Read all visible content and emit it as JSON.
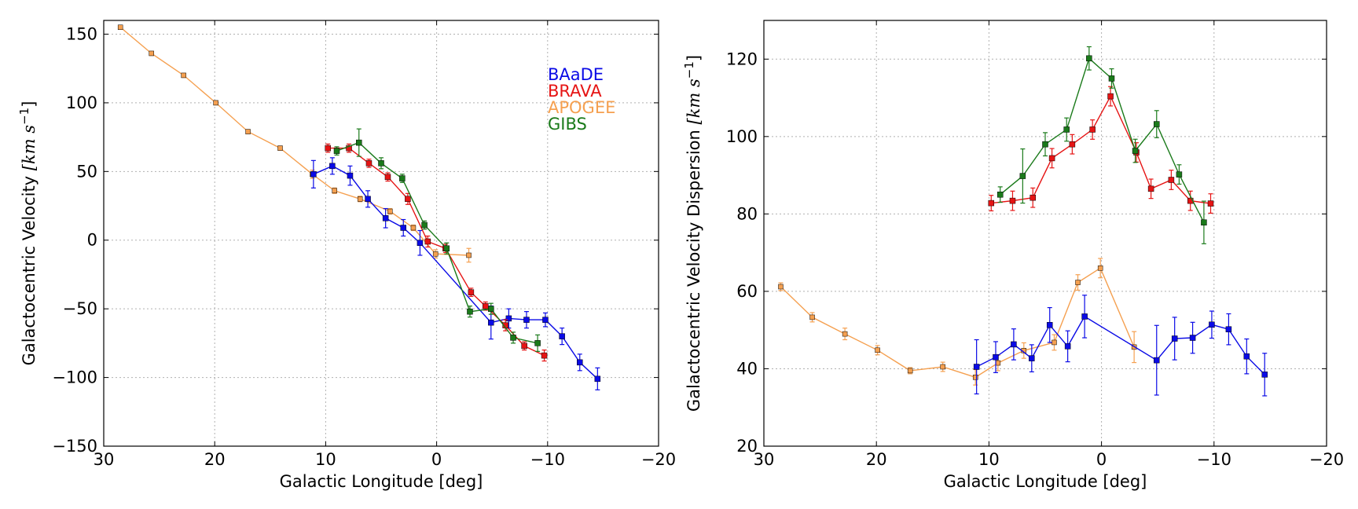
{
  "chart_data": [
    {
      "type": "line",
      "panel": "left",
      "title": "",
      "xlabel": "Galactic Longitude [deg]",
      "ylabel_text": "Galactocentric Velocity",
      "ylabel_units": "[km s",
      "ylabel_exponent": "−1",
      "ylabel_close": "]",
      "xlim": [
        30,
        -20
      ],
      "ylim": [
        -150,
        160
      ],
      "xticks": [
        30,
        20,
        10,
        0,
        -10,
        -20
      ],
      "xtick_labels": [
        "30",
        "20",
        "10",
        "0",
        "−10",
        "−20"
      ],
      "yticks": [
        -150,
        -100,
        -50,
        0,
        50,
        100,
        150
      ],
      "ytick_labels": [
        "−150",
        "−100",
        "−50",
        "0",
        "50",
        "100",
        "150"
      ],
      "grid": true,
      "legend": {
        "position": "upper-right",
        "entries": [
          {
            "label": "BAaDE",
            "color": "#0a0ae6"
          },
          {
            "label": "BRAVA",
            "color": "#e61414"
          },
          {
            "label": "APOGEE",
            "color": "#f5a050"
          },
          {
            "label": "GIBS",
            "color": "#1a7a1a"
          }
        ]
      },
      "series": [
        {
          "name": "APOGEE",
          "color": "#f5a050",
          "marker_size": 6,
          "x": [
            28.5,
            25.7,
            22.8,
            19.9,
            17.0,
            14.1,
            11.2,
            9.2,
            6.9,
            4.2,
            2.1,
            0.1,
            -2.9
          ],
          "y": [
            155,
            136,
            120,
            100,
            79,
            67,
            48,
            36,
            30,
            21,
            9,
            -10,
            -11
          ],
          "err": [
            1,
            1.5,
            1.5,
            1.5,
            1.5,
            1.5,
            3,
            2,
            2,
            2,
            2,
            3,
            5
          ]
        },
        {
          "name": "BAaDE",
          "color": "#0a0ae6",
          "marker_size": 7,
          "x": [
            11.1,
            9.4,
            7.8,
            6.2,
            4.6,
            3.0,
            1.5,
            -4.9,
            -6.5,
            -8.1,
            -9.8,
            -11.3,
            -12.9,
            -14.5
          ],
          "y": [
            48,
            54,
            47,
            30,
            16,
            9,
            -2,
            -60,
            -57,
            -58,
            -58,
            -70,
            -89,
            -101
          ],
          "err": [
            10,
            6,
            7,
            6,
            7,
            6,
            9,
            12,
            7,
            6,
            5,
            6,
            6,
            8
          ]
        },
        {
          "name": "BRAVA",
          "color": "#e61414",
          "marker_size": 7,
          "x": [
            9.8,
            7.9,
            6.1,
            4.4,
            2.6,
            0.8,
            -0.8,
            -3.1,
            -4.4,
            -6.2,
            -7.9,
            -9.7
          ],
          "y": [
            67,
            67,
            56,
            46,
            30,
            -1,
            -6,
            -38,
            -48,
            -62,
            -77,
            -84
          ],
          "err": [
            3,
            3,
            3,
            3,
            4,
            4,
            3,
            3,
            3,
            4,
            3,
            4
          ]
        },
        {
          "name": "GIBS",
          "color": "#1a7a1a",
          "marker_size": 7,
          "x": [
            9.0,
            7.0,
            5.0,
            3.1,
            1.1,
            -0.9,
            -3.0,
            -4.9,
            -6.9,
            -9.1
          ],
          "y": [
            65,
            71,
            56,
            45,
            11,
            -6,
            -52,
            -50,
            -71,
            -75
          ],
          "err": [
            3,
            10,
            4,
            3,
            3,
            4,
            4,
            4,
            4,
            6
          ]
        }
      ]
    },
    {
      "type": "line",
      "panel": "right",
      "title": "",
      "xlabel": "Galactic Longitude [deg]",
      "ylabel_text": "Galactocentric Velocity Dispersion",
      "ylabel_units": "[km s",
      "ylabel_exponent": "−1",
      "ylabel_close": "]",
      "xlim": [
        30,
        -20
      ],
      "ylim": [
        20,
        130
      ],
      "xticks": [
        30,
        20,
        10,
        0,
        -10,
        -20
      ],
      "xtick_labels": [
        "30",
        "20",
        "10",
        "0",
        "−10",
        "−20"
      ],
      "yticks": [
        20,
        40,
        60,
        80,
        100,
        120
      ],
      "ytick_labels": [
        "20",
        "40",
        "60",
        "80",
        "100",
        "120"
      ],
      "grid": true,
      "series": [
        {
          "name": "APOGEE",
          "color": "#f5a050",
          "marker_size": 6,
          "x": [
            28.5,
            25.7,
            22.8,
            19.9,
            17.0,
            14.1,
            11.2,
            9.2,
            6.9,
            4.2,
            2.1,
            0.1,
            -2.9
          ],
          "y": [
            61.2,
            53.3,
            49,
            44.8,
            39.5,
            40.5,
            37.8,
            41.5,
            44.7,
            46.8,
            62.3,
            66,
            45.6
          ],
          "err": [
            1,
            1.2,
            1.5,
            1.2,
            0.8,
            1.2,
            2,
            2,
            2,
            2,
            2,
            2.5,
            4
          ]
        },
        {
          "name": "BAaDE",
          "color": "#0a0ae6",
          "marker_size": 7,
          "x": [
            11.1,
            9.4,
            7.8,
            6.2,
            4.6,
            3.0,
            1.5,
            -4.9,
            -6.5,
            -8.1,
            -9.8,
            -11.3,
            -12.9,
            -14.5
          ],
          "y": [
            40.5,
            43,
            46.3,
            42.7,
            51.3,
            45.8,
            53.5,
            42.2,
            47.8,
            48,
            51.4,
            50.2,
            43.2,
            38.5
          ],
          "err": [
            7,
            4,
            4,
            3.5,
            4.5,
            4,
            5.5,
            9,
            5.5,
            4,
            3.5,
            4,
            4.5,
            5.5
          ]
        },
        {
          "name": "BRAVA",
          "color": "#e61414",
          "marker_size": 7,
          "x": [
            9.8,
            7.9,
            6.1,
            4.4,
            2.6,
            0.8,
            -0.8,
            -3.1,
            -4.4,
            -6.2,
            -7.9,
            -9.7
          ],
          "y": [
            82.8,
            83.4,
            84.2,
            94.4,
            98,
            101.8,
            110.4,
            95.9,
            86.5,
            88.8,
            83.4,
            82.7
          ],
          "err": [
            2,
            2.5,
            2.5,
            2.5,
            2.5,
            2.5,
            2.5,
            2.5,
            2.5,
            2.5,
            2.5,
            2.5
          ]
        },
        {
          "name": "GIBS",
          "color": "#1a7a1a",
          "marker_size": 7,
          "x": [
            9.0,
            7.0,
            5.0,
            3.1,
            1.1,
            -0.9,
            -3.0,
            -4.9,
            -6.9,
            -9.1
          ],
          "y": [
            85,
            89.8,
            98,
            101.8,
            120.2,
            115,
            96.3,
            103.2,
            90.2,
            77.8
          ],
          "err": [
            2,
            7,
            3,
            3,
            3,
            2.5,
            3,
            3.5,
            2.5,
            5.5
          ]
        }
      ]
    }
  ]
}
